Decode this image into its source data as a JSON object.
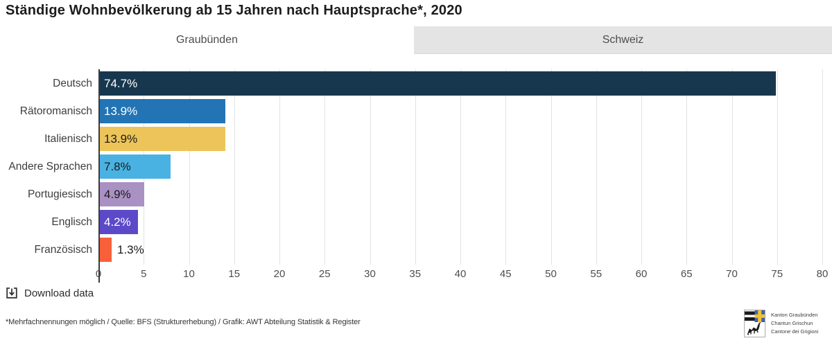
{
  "title": "Ständige Wohnbevölkerung ab 15 Jahren nach Hauptsprache*, 2020",
  "tabs": [
    {
      "label": "Graubünden",
      "active": true
    },
    {
      "label": "Schweiz",
      "active": false
    }
  ],
  "chart_data": {
    "type": "bar",
    "orientation": "horizontal",
    "title": "Ständige Wohnbevölkerung ab 15 Jahren nach Hauptsprache*, 2020",
    "categories": [
      "Deutsch",
      "Rätoromanisch",
      "Italienisch",
      "Andere Sprachen",
      "Portugiesisch",
      "Englisch",
      "Französisch"
    ],
    "values": [
      74.7,
      13.9,
      13.9,
      7.8,
      4.9,
      4.2,
      1.3
    ],
    "value_labels": [
      "74.7%",
      "13.9%",
      "13.9%",
      "7.8%",
      "4.9%",
      "4.2%",
      "1.3%"
    ],
    "bar_colors": [
      "#17374e",
      "#2274b5",
      "#ecc459",
      "#4ab2e2",
      "#a991c4",
      "#5c49c8",
      "#f8603a"
    ],
    "label_inside": [
      true,
      true,
      true,
      true,
      true,
      true,
      false
    ],
    "label_colors": [
      "#ffffff",
      "#ffffff",
      "#1a1a1a",
      "#1a1a1a",
      "#1a1a1a",
      "#ffffff",
      "#1a1a1a"
    ],
    "xlabel": "",
    "ylabel": "",
    "xlim": [
      0,
      80
    ],
    "xticks": [
      0,
      5,
      10,
      15,
      20,
      25,
      30,
      35,
      40,
      45,
      50,
      55,
      60,
      65,
      70,
      75,
      80
    ],
    "grid": true,
    "gridline_color": "#e2e2e2",
    "axis_color": "#3a3a3a",
    "unit": "%"
  },
  "download": {
    "label": "Download data"
  },
  "footnote": "*Mehrfachnennungen möglich / Quelle: BFS (Strukturerhebung) / Grafik: AWT Abteilung Statistik & Register",
  "logo": {
    "lines": [
      "Kanton Graubünden",
      "Chantun Grischun",
      "Cantone dei Grigioni"
    ],
    "shield_blue": "#3e63ad",
    "shield_yellow": "#f2c233"
  }
}
